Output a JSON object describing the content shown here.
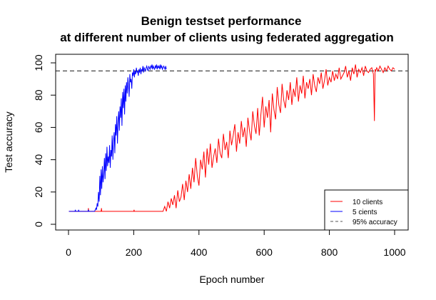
{
  "chart_data": {
    "type": "line",
    "title": "Benign testset performance",
    "subtitle": "at different number of clients using federated aggregation",
    "xlabel": "Epoch number",
    "ylabel": "Test accuracy",
    "xlim": [
      0,
      1000
    ],
    "ylim": [
      0,
      100
    ],
    "xticks": [
      0,
      200,
      400,
      600,
      800,
      1000
    ],
    "yticks": [
      0,
      20,
      40,
      60,
      80,
      100
    ],
    "grid": false,
    "legend_position": "bottom-right",
    "reference_line": {
      "name": "95% accuracy",
      "y": 95,
      "style": "dashed",
      "color": "#555555"
    },
    "series": [
      {
        "name": "10 clients",
        "color": "#ff0000",
        "x": [
          1,
          60,
          61,
          62,
          63,
          100,
          101,
          102,
          103,
          200,
          201,
          202,
          203,
          280,
          290,
          295,
          300,
          305,
          310,
          315,
          320,
          325,
          330,
          335,
          340,
          345,
          350,
          355,
          360,
          365,
          370,
          375,
          380,
          385,
          390,
          395,
          400,
          405,
          410,
          415,
          420,
          425,
          430,
          435,
          440,
          445,
          450,
          455,
          460,
          465,
          470,
          475,
          480,
          485,
          490,
          495,
          500,
          505,
          510,
          515,
          520,
          525,
          530,
          535,
          540,
          545,
          550,
          555,
          560,
          565,
          570,
          575,
          580,
          585,
          590,
          595,
          600,
          605,
          610,
          615,
          620,
          625,
          630,
          635,
          640,
          645,
          650,
          655,
          660,
          665,
          670,
          675,
          680,
          685,
          690,
          695,
          700,
          705,
          710,
          715,
          720,
          725,
          730,
          735,
          740,
          745,
          750,
          755,
          760,
          765,
          770,
          775,
          780,
          785,
          790,
          795,
          800,
          805,
          810,
          815,
          820,
          825,
          830,
          835,
          840,
          845,
          850,
          855,
          860,
          865,
          870,
          875,
          880,
          885,
          890,
          895,
          900,
          905,
          910,
          915,
          920,
          925,
          930,
          935,
          938,
          940,
          942,
          945,
          950,
          955,
          960,
          965,
          970,
          975,
          980,
          985,
          990,
          995,
          1000
        ],
        "y": [
          8,
          8,
          10,
          8,
          8,
          8,
          10,
          8,
          8,
          8,
          9,
          8,
          8,
          8,
          8,
          11,
          8,
          14,
          10,
          16,
          12,
          18,
          10,
          21,
          14,
          17,
          25,
          15,
          27,
          20,
          31,
          22,
          35,
          26,
          41,
          30,
          24,
          40,
          34,
          45,
          29,
          47,
          37,
          50,
          35,
          42,
          47,
          38,
          53,
          44,
          41,
          56,
          46,
          51,
          41,
          58,
          49,
          55,
          62,
          45,
          57,
          50,
          64,
          54,
          60,
          48,
          66,
          58,
          52,
          70,
          61,
          56,
          72,
          55,
          68,
          79,
          60,
          73,
          66,
          77,
          57,
          81,
          71,
          65,
          85,
          74,
          69,
          87,
          77,
          72,
          83,
          77,
          88,
          74,
          84,
          79,
          91,
          76,
          86,
          81,
          92,
          78,
          88,
          84,
          90,
          80,
          93,
          86,
          82,
          91,
          87,
          94,
          84,
          89,
          96,
          86,
          91,
          88,
          95,
          89,
          93,
          90,
          97,
          90,
          92,
          94,
          98,
          91,
          95,
          89,
          97,
          93,
          99,
          91,
          96,
          94,
          97,
          92,
          98,
          95,
          94,
          96,
          97,
          93,
          64,
          96,
          95,
          97,
          95,
          98,
          96,
          94,
          97,
          95,
          98,
          96,
          95,
          97,
          96
        ]
      },
      {
        "name": "5 cients",
        "color": "#0000ff",
        "x": [
          1,
          20,
          21,
          22,
          23,
          30,
          31,
          32,
          33,
          60,
          61,
          62,
          63,
          80,
          84,
          86,
          88,
          90,
          92,
          94,
          96,
          98,
          100,
          102,
          104,
          106,
          108,
          110,
          112,
          114,
          116,
          118,
          120,
          122,
          124,
          126,
          128,
          130,
          132,
          134,
          136,
          138,
          140,
          142,
          144,
          146,
          148,
          150,
          152,
          154,
          156,
          158,
          160,
          162,
          164,
          166,
          168,
          170,
          172,
          174,
          176,
          178,
          180,
          182,
          184,
          186,
          188,
          190,
          192,
          194,
          196,
          198,
          200,
          202,
          204,
          206,
          208,
          210,
          212,
          214,
          216,
          218,
          220,
          222,
          224,
          226,
          228,
          230,
          232,
          234,
          236,
          238,
          240,
          242,
          244,
          246,
          248,
          250,
          252,
          254,
          256,
          258,
          260,
          262,
          264,
          266,
          268,
          270,
          272,
          274,
          276,
          278,
          280,
          282,
          284,
          286,
          288,
          290,
          292,
          294,
          296,
          298,
          300
        ],
        "y": [
          8,
          8,
          9,
          8,
          8,
          8,
          9,
          8,
          8,
          8,
          9,
          8,
          8,
          8,
          10,
          9,
          13,
          11,
          20,
          14,
          30,
          18,
          34,
          22,
          36,
          26,
          31,
          41,
          28,
          44,
          33,
          48,
          36,
          42,
          38,
          49,
          35,
          46,
          42,
          55,
          40,
          52,
          57,
          44,
          62,
          55,
          67,
          50,
          64,
          70,
          58,
          73,
          66,
          78,
          61,
          82,
          72,
          84,
          68,
          86,
          76,
          88,
          81,
          91,
          86,
          79,
          93,
          88,
          90,
          84,
          94,
          92,
          96,
          91,
          95,
          93,
          97,
          94,
          95,
          92,
          96,
          94,
          97,
          93,
          96,
          95,
          98,
          94,
          97,
          96,
          95,
          97,
          98,
          96,
          95,
          98,
          97,
          96,
          98,
          97,
          99,
          96,
          98,
          97,
          96,
          98,
          97,
          99,
          96,
          98,
          97,
          98,
          96,
          99,
          97,
          98,
          96,
          97,
          98,
          97,
          96,
          98,
          96
        ]
      }
    ]
  }
}
